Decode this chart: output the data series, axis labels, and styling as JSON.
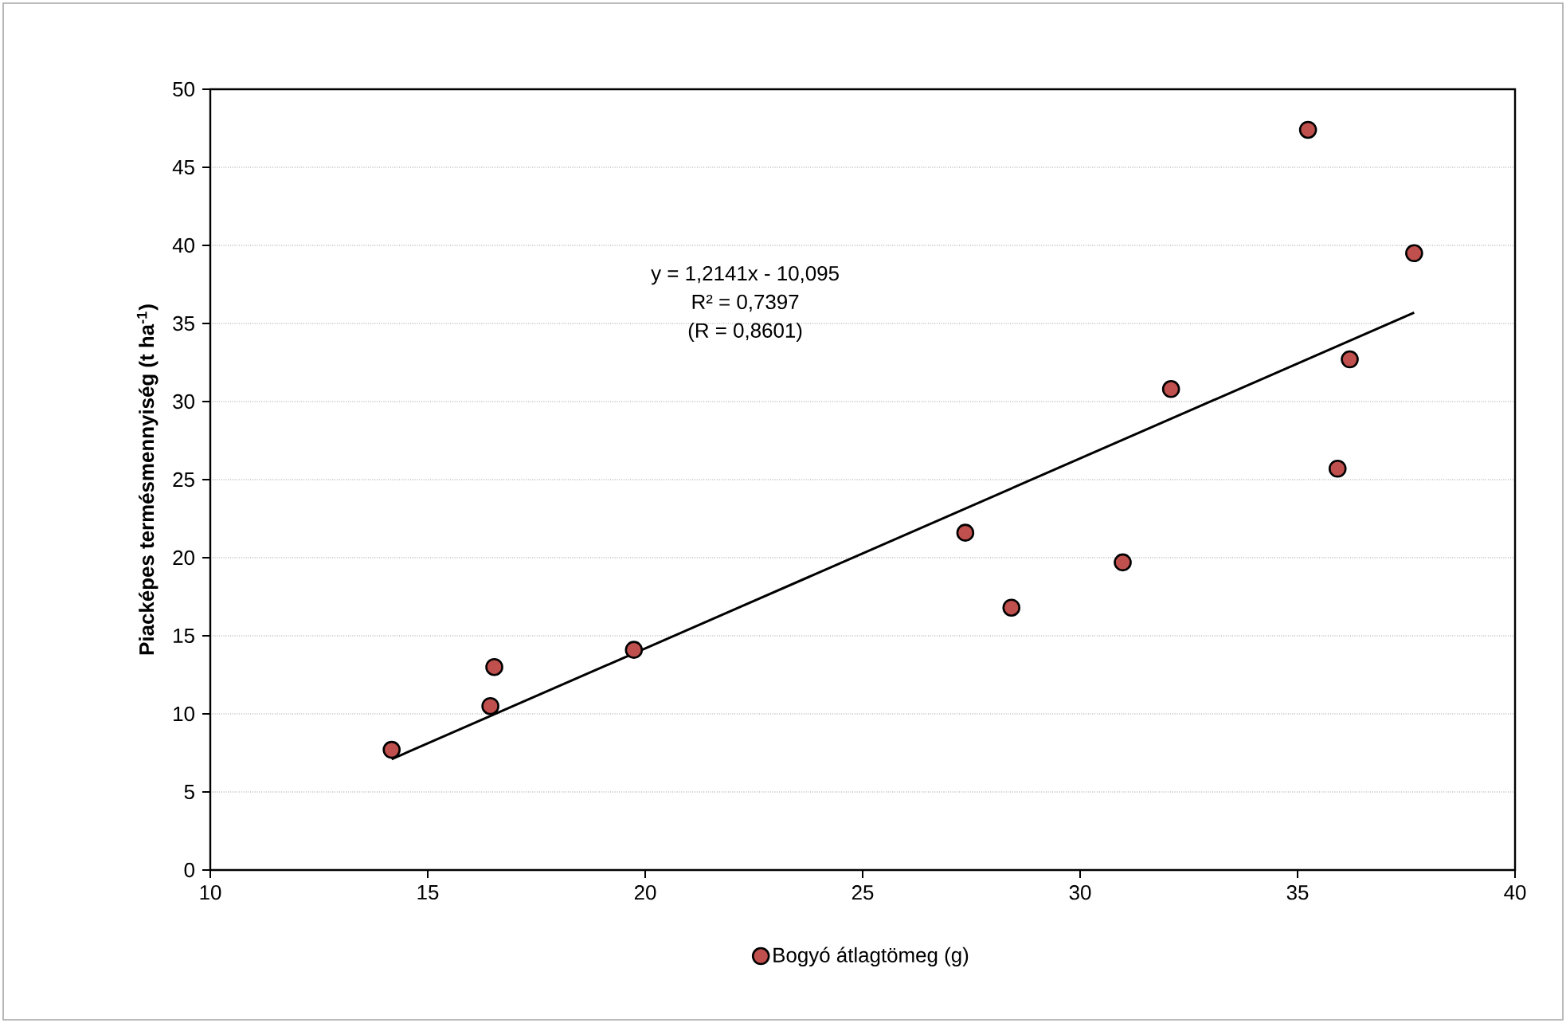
{
  "chart_data": {
    "type": "scatter",
    "ylabel": "Piacképes termésmennyiség (t ha$^{-1}$)",
    "annotations": [
      "y = 1,2141x - 10,095",
      "R² = 0,7397",
      "(R = 0,8601)"
    ],
    "xlim": [
      10,
      40
    ],
    "xticks": [
      10,
      15,
      20,
      25,
      30,
      35,
      40
    ],
    "ylim": [
      0,
      50
    ],
    "yticks": [
      0,
      5,
      10,
      15,
      20,
      25,
      30,
      35,
      40,
      45,
      50
    ],
    "grid": "y",
    "legend": "bottom",
    "marker": "circle",
    "series": [
      {
        "name": "Bogyó átlagtömeg (g)",
        "color": "#c0504d",
        "x": [
          14.17,
          16.44,
          16.53,
          19.74,
          27.36,
          28.42,
          30.98,
          32.09,
          35.24,
          35.92,
          36.2,
          37.68
        ],
        "values": [
          7.7,
          10.5,
          13.0,
          14.1,
          21.6,
          16.8,
          19.7,
          30.8,
          47.4,
          25.7,
          32.7,
          39.5
        ]
      },
      {
        "type": "line",
        "color": "#000000",
        "marker": "none",
        "x": [
          14.17,
          37.68
        ],
        "values": [
          7.1,
          35.7
        ]
      }
    ]
  }
}
